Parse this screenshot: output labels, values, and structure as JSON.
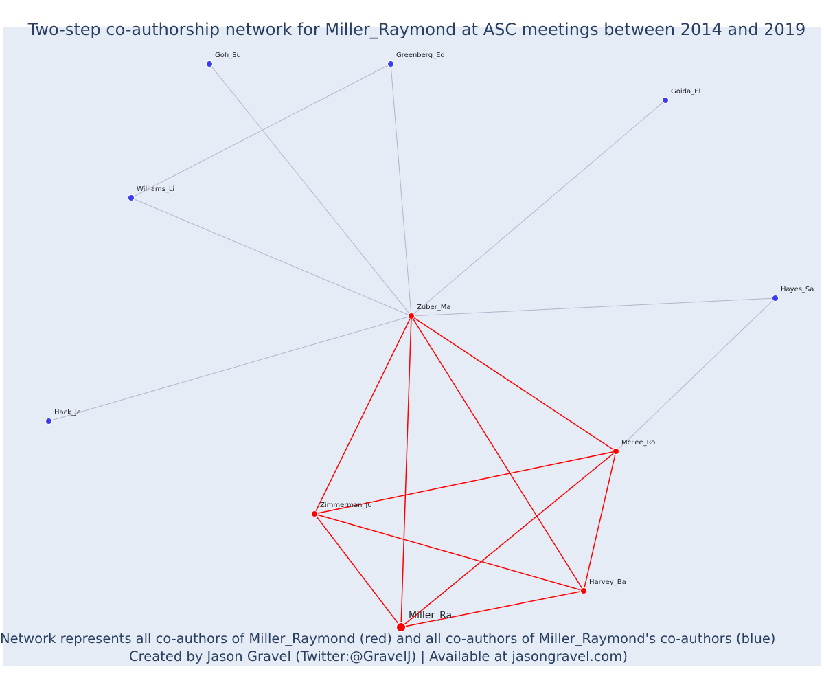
{
  "title": "Two-step co-authorship network for Miller_Raymond at ASC meetings between 2014 and 2019",
  "caption": {
    "line1": "Network represents all co-authors of Miller_Raymond (red) and all co-authors of Miller_Raymond's co-authors (blue)",
    "line2": "Created by Jason Gravel (Twitter:@GravelJ) | Available at jasongravel.com)"
  },
  "colors": {
    "background": "#e5ecf6",
    "first_step": "#ff0000",
    "second_step": "#3b3bf0",
    "edge_first_step": "#ff0000",
    "edge_second_step": "#b4b4c8",
    "text": "#2a3f5f"
  },
  "network": {
    "ego": "Miller_Ra",
    "nodes": [
      {
        "id": "miller-ra",
        "label": "Miller_Ra",
        "group": "ego"
      },
      {
        "id": "zuber-ma",
        "label": "Zuber_Ma",
        "group": "first"
      },
      {
        "id": "mcfee-ro",
        "label": "McFee_Ro",
        "group": "first"
      },
      {
        "id": "zimmerman-ju",
        "label": "Zimmerman_Ju",
        "group": "first"
      },
      {
        "id": "harvey-ba",
        "label": "Harvey_Ba",
        "group": "first"
      },
      {
        "id": "goh-su",
        "label": "Goh_Su",
        "group": "second"
      },
      {
        "id": "greenberg-ed",
        "label": "Greenberg_Ed",
        "group": "second"
      },
      {
        "id": "goida-el",
        "label": "Goida_El",
        "group": "second"
      },
      {
        "id": "williams-li",
        "label": "Williams_Li",
        "group": "second"
      },
      {
        "id": "hayes-sa",
        "label": "Hayes_Sa",
        "group": "second"
      },
      {
        "id": "hack-je",
        "label": "Hack_Je",
        "group": "second"
      }
    ],
    "edges": [
      {
        "source": "zuber-ma",
        "target": "goh-su",
        "type": "second"
      },
      {
        "source": "zuber-ma",
        "target": "greenberg-ed",
        "type": "second"
      },
      {
        "source": "zuber-ma",
        "target": "goida-el",
        "type": "second"
      },
      {
        "source": "zuber-ma",
        "target": "williams-li",
        "type": "second"
      },
      {
        "source": "williams-li",
        "target": "greenberg-ed",
        "type": "second"
      },
      {
        "source": "zuber-ma",
        "target": "hayes-sa",
        "type": "second"
      },
      {
        "source": "zuber-ma",
        "target": "hack-je",
        "type": "second"
      },
      {
        "source": "mcfee-ro",
        "target": "hayes-sa",
        "type": "second"
      },
      {
        "source": "zuber-ma",
        "target": "mcfee-ro",
        "type": "first"
      },
      {
        "source": "zuber-ma",
        "target": "zimmerman-ju",
        "type": "first"
      },
      {
        "source": "zuber-ma",
        "target": "harvey-ba",
        "type": "first"
      },
      {
        "source": "zuber-ma",
        "target": "miller-ra",
        "type": "first"
      },
      {
        "source": "mcfee-ro",
        "target": "zimmerman-ju",
        "type": "first"
      },
      {
        "source": "mcfee-ro",
        "target": "harvey-ba",
        "type": "first"
      },
      {
        "source": "mcfee-ro",
        "target": "miller-ra",
        "type": "first"
      },
      {
        "source": "zimmerman-ju",
        "target": "harvey-ba",
        "type": "first"
      },
      {
        "source": "zimmerman-ju",
        "target": "miller-ra",
        "type": "first"
      },
      {
        "source": "harvey-ba",
        "target": "miller-ra",
        "type": "first"
      }
    ]
  }
}
